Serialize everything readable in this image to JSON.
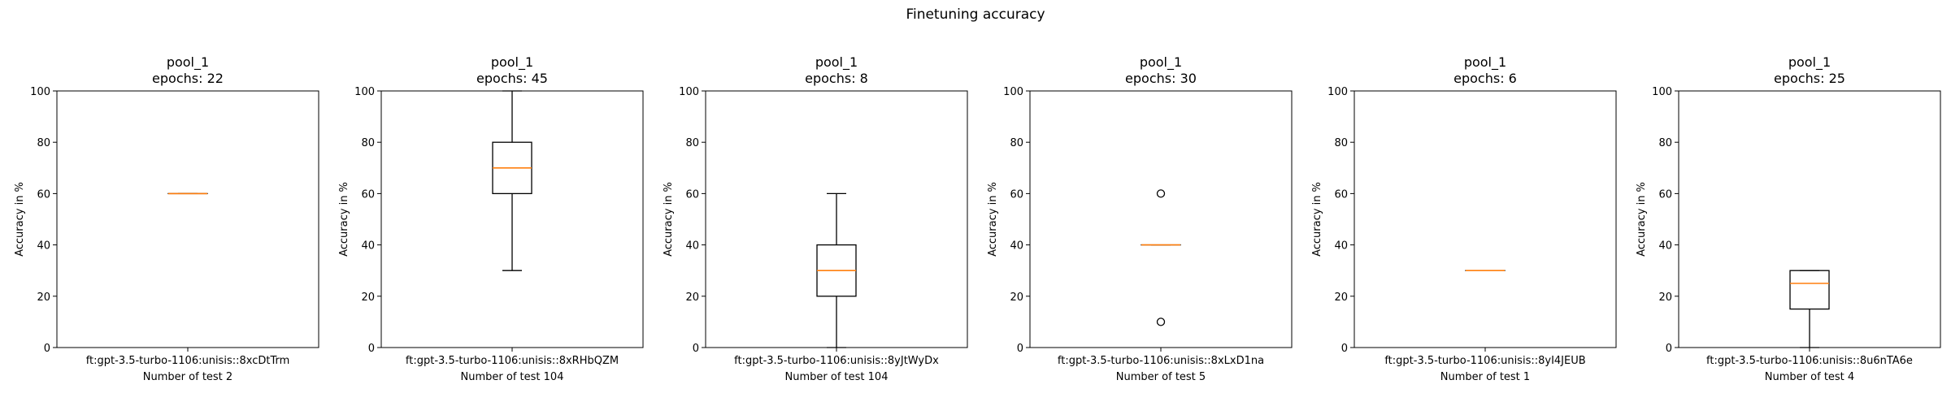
{
  "figure": {
    "title": "Finetuning accuracy"
  },
  "chart_data": [
    {
      "type": "boxplot",
      "title_lines": [
        "pool_1",
        "epochs: 22"
      ],
      "ylabel": "Accuracy in %",
      "ylim": [
        0,
        100
      ],
      "yticks": [
        "0",
        "20",
        "40",
        "60",
        "80",
        "100"
      ],
      "category": "ft:gpt-3.5-turbo-1106:unisis::8xcDtTrm",
      "xlabel": "Number of test 2",
      "box": {
        "whisker_low": 60,
        "q1": 60,
        "median": 60,
        "q3": 60,
        "whisker_high": 60,
        "outliers": []
      }
    },
    {
      "type": "boxplot",
      "title_lines": [
        "pool_1",
        "epochs: 45"
      ],
      "ylabel": "Accuracy in %",
      "ylim": [
        0,
        100
      ],
      "yticks": [
        "0",
        "20",
        "40",
        "60",
        "80",
        "100"
      ],
      "category": "ft:gpt-3.5-turbo-1106:unisis::8xRHbQZM",
      "xlabel": "Number of test 104",
      "box": {
        "whisker_low": 30,
        "q1": 60,
        "median": 70,
        "q3": 80,
        "whisker_high": 100,
        "outliers": []
      }
    },
    {
      "type": "boxplot",
      "title_lines": [
        "pool_1",
        "epochs: 8"
      ],
      "ylabel": "Accuracy in %",
      "ylim": [
        0,
        100
      ],
      "yticks": [
        "0",
        "20",
        "40",
        "60",
        "80",
        "100"
      ],
      "category": "ft:gpt-3.5-turbo-1106:unisis::8yJtWyDx",
      "xlabel": "Number of test 104",
      "box": {
        "whisker_low": 0,
        "q1": 20,
        "median": 30,
        "q3": 40,
        "whisker_high": 60,
        "outliers": []
      }
    },
    {
      "type": "boxplot",
      "title_lines": [
        "pool_1",
        "epochs: 30"
      ],
      "ylabel": "Accuracy in %",
      "ylim": [
        0,
        100
      ],
      "yticks": [
        "0",
        "20",
        "40",
        "60",
        "80",
        "100"
      ],
      "category": "ft:gpt-3.5-turbo-1106:unisis::8xLxD1na",
      "xlabel": "Number of test 5",
      "box": {
        "whisker_low": 40,
        "q1": 40,
        "median": 40,
        "q3": 40,
        "whisker_high": 40,
        "outliers": [
          60,
          10
        ]
      }
    },
    {
      "type": "boxplot",
      "title_lines": [
        "pool_1",
        "epochs: 6"
      ],
      "ylabel": "Accuracy in %",
      "ylim": [
        0,
        100
      ],
      "yticks": [
        "0",
        "20",
        "40",
        "60",
        "80",
        "100"
      ],
      "category": "ft:gpt-3.5-turbo-1106:unisis::8yI4JEUB",
      "xlabel": "Number of test 1",
      "box": {
        "whisker_low": 30,
        "q1": 30,
        "median": 30,
        "q3": 30,
        "whisker_high": 30,
        "outliers": []
      }
    },
    {
      "type": "boxplot",
      "title_lines": [
        "pool_1",
        "epochs: 25"
      ],
      "ylabel": "Accuracy in %",
      "ylim": [
        0,
        100
      ],
      "yticks": [
        "0",
        "20",
        "40",
        "60",
        "80",
        "100"
      ],
      "category": "ft:gpt-3.5-turbo-1106:unisis::8u6nTA6e",
      "xlabel": "Number of test 4",
      "box": {
        "whisker_low": 0,
        "q1": 15,
        "median": 25,
        "q3": 30,
        "whisker_high": 30,
        "outliers": []
      }
    }
  ],
  "colors": {
    "median": "#ff7f0e",
    "box": "#000000",
    "axes": "#000000"
  }
}
